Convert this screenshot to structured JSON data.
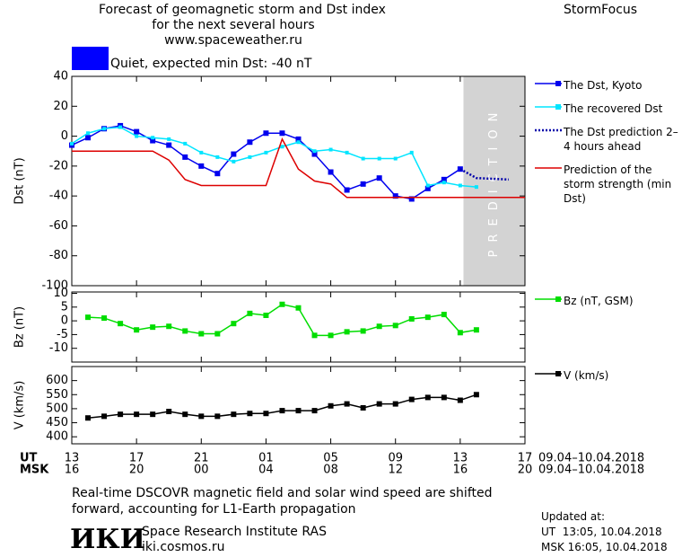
{
  "header": {
    "title": "Forecast of geomagnetic storm and Dst index",
    "subtitle": "for the next several hours",
    "url": "www.spaceweather.ru",
    "brand": "StormFocus",
    "status": "Quiet, expected min Dst: -40 nT",
    "status_color": "#0000ff"
  },
  "chart_data": [
    {
      "type": "line",
      "ylabel": "Dst (nT)",
      "xlim": [
        0,
        28
      ],
      "ylim": [
        -100,
        40
      ],
      "yticks": [
        40,
        20,
        0,
        -20,
        -40,
        -60,
        -80,
        -100
      ],
      "shade_x": [
        24.2,
        28
      ],
      "shade_label": "PREDICTION",
      "series": [
        {
          "name": "The Dst, Kyoto",
          "color": "#0000ee",
          "marker": "square",
          "x": [
            0,
            1,
            2,
            3,
            4,
            5,
            6,
            7,
            8,
            9,
            10,
            11,
            12,
            13,
            14,
            15,
            16,
            17,
            18,
            19,
            20,
            21,
            22,
            23,
            24
          ],
          "values": [
            -6,
            -1,
            5,
            7,
            3,
            -3,
            -6,
            -14,
            -20,
            -25,
            -12,
            -4,
            2,
            2,
            -2,
            -12,
            -24,
            -36,
            -32,
            -28,
            -40,
            -42,
            -35,
            -29,
            -22
          ]
        },
        {
          "name": "The recovered Dst",
          "color": "#00e5ff",
          "marker": "small",
          "x": [
            0,
            1,
            2,
            3,
            4,
            5,
            6,
            7,
            8,
            9,
            10,
            11,
            12,
            13,
            14,
            15,
            16,
            17,
            18,
            19,
            20,
            21,
            22,
            23,
            24,
            25
          ],
          "values": [
            -5,
            2,
            5,
            6,
            0,
            -1,
            -2,
            -5,
            -11,
            -14,
            -17,
            -14,
            -11,
            -7,
            -4,
            -10,
            -9,
            -11,
            -15,
            -15,
            -15,
            -11,
            -33,
            -31,
            -33,
            -34
          ]
        },
        {
          "name": "The Dst prediction 2–4 hours ahead",
          "color": "#0000aa",
          "dash": true,
          "x": [
            24,
            25,
            27
          ],
          "values": [
            -22,
            -28,
            -29
          ]
        },
        {
          "name": "Prediction of the storm strength (min Dst)",
          "color": "#dd0000",
          "x": [
            0,
            5,
            6,
            7,
            8,
            12,
            13,
            14,
            15,
            16,
            17,
            28
          ],
          "values": [
            -10,
            -10,
            -16,
            -29,
            -33,
            -33,
            -2,
            -22,
            -30,
            -32,
            -41,
            -41
          ]
        }
      ]
    },
    {
      "type": "line",
      "ylabel": "Bz (nT)",
      "xlim": [
        0,
        28
      ],
      "ylim": [
        -15,
        10.5
      ],
      "yticks": [
        10,
        5,
        0,
        -5,
        -10
      ],
      "series": [
        {
          "name": "Bz (nT, GSM)",
          "color": "#00dd00",
          "marker": "square",
          "x": [
            1,
            2,
            3,
            4,
            5,
            6,
            7,
            8,
            9,
            10,
            11,
            12,
            13,
            14,
            15,
            16,
            17,
            18,
            19,
            20,
            21,
            22,
            23,
            24,
            25
          ],
          "values": [
            1.3,
            1,
            -1,
            -3.3,
            -2.3,
            -2,
            -3.7,
            -4.7,
            -4.7,
            -1,
            2.7,
            2,
            6,
            4.7,
            -5.3,
            -5.3,
            -4,
            -3.7,
            -2,
            -1.7,
            0.7,
            1.3,
            2.3,
            -4.3,
            -3.3
          ]
        }
      ]
    },
    {
      "type": "line",
      "ylabel": "V (km/s)",
      "xlim": [
        0,
        28
      ],
      "ylim": [
        375,
        650
      ],
      "yticks": [
        600,
        550,
        500,
        450,
        400
      ],
      "xticks": [
        {
          "value": 0,
          "label": "13"
        },
        {
          "value": 4,
          "label": "17"
        },
        {
          "value": 8,
          "label": "21"
        },
        {
          "value": 12,
          "label": "01"
        },
        {
          "value": 16,
          "label": "05"
        },
        {
          "value": 20,
          "label": "09"
        },
        {
          "value": 24,
          "label": "13"
        },
        {
          "value": 28,
          "label": "17"
        }
      ],
      "msk_ticks": [
        {
          "value": 0,
          "label": "16"
        },
        {
          "value": 4,
          "label": "20"
        },
        {
          "value": 8,
          "label": "00"
        },
        {
          "value": 12,
          "label": "04"
        },
        {
          "value": 16,
          "label": "08"
        },
        {
          "value": 20,
          "label": "12"
        },
        {
          "value": 24,
          "label": "16"
        },
        {
          "value": 28,
          "label": "20"
        }
      ],
      "ut_label": "UT",
      "msk_label": "MSK",
      "ut_range": "09.04–10.04.2018",
      "msk_range": "09.04–10.04.2018",
      "series": [
        {
          "name": "V (km/s)",
          "color": "#000000",
          "marker": "square",
          "x": [
            1,
            2,
            3,
            4,
            5,
            6,
            7,
            8,
            9,
            10,
            11,
            12,
            13,
            14,
            15,
            16,
            17,
            18,
            19,
            20,
            21,
            22,
            23,
            24,
            25
          ],
          "values": [
            467,
            473,
            480,
            480,
            480,
            490,
            480,
            473,
            473,
            480,
            483,
            483,
            493,
            493,
            493,
            510,
            517,
            503,
            517,
            517,
            533,
            540,
            540,
            530,
            550
          ]
        }
      ]
    }
  ],
  "footer": {
    "note": "Real-time DSCOVR magnetic field and solar wind speed are shifted forward, accounting for L1-Earth propagation",
    "logo": "ИКИ",
    "institute": "Space Research Institute RAS",
    "site": "iki.cosmos.ru",
    "updated": "Updated at:",
    "updated_ut": "UT  13:05, 10.04.2018",
    "updated_msk": "MSK 16:05, 10.04.2018"
  }
}
